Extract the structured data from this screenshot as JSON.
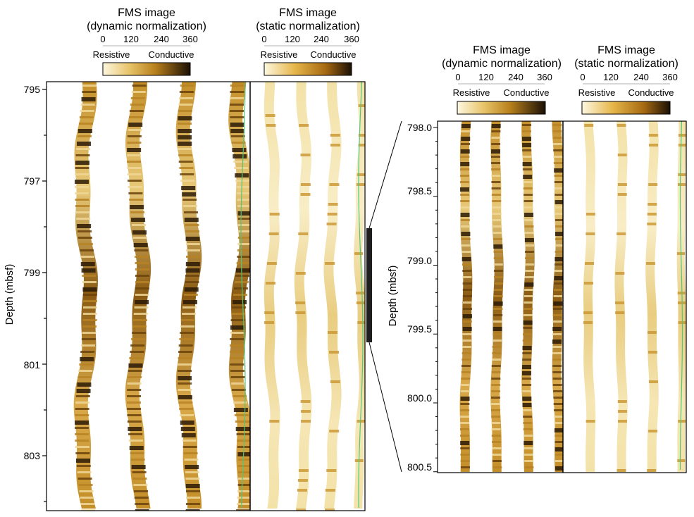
{
  "left_figure": {
    "y_axis_label": "Depth (mbsf)",
    "depth_ticks": [
      "795",
      "797",
      "799",
      "801",
      "803"
    ],
    "panels": [
      {
        "title_line1": "FMS image",
        "title_line2": "(dynamic normalization)",
        "scale_ticks": [
          "0",
          "120",
          "240",
          "360"
        ],
        "resistive_label": "Resistive",
        "conductive_label": "Conductive",
        "normalization": "dynamic"
      },
      {
        "title_line1": "FMS image",
        "title_line2": "(static normalization)",
        "scale_ticks": [
          "0",
          "120",
          "240",
          "360"
        ],
        "resistive_label": "Resistive",
        "conductive_label": "Conductive",
        "normalization": "static"
      }
    ]
  },
  "right_figure": {
    "y_axis_label": "Depth (mbsf)",
    "depth_ticks": [
      "798.0",
      "798.5",
      "799.0",
      "799.5",
      "800.0",
      "800.5"
    ],
    "panels": [
      {
        "title_line1": "FMS image",
        "title_line2": "(dynamic normalization)",
        "scale_ticks": [
          "0",
          "120",
          "240",
          "360"
        ],
        "resistive_label": "Resistive",
        "conductive_label": "Conductive",
        "normalization": "dynamic"
      },
      {
        "title_line1": "FMS image",
        "title_line2": "(static normalization)",
        "scale_ticks": [
          "0",
          "120",
          "240",
          "360"
        ],
        "resistive_label": "Resistive",
        "conductive_label": "Conductive",
        "normalization": "static"
      }
    ]
  },
  "colors": {
    "resistive": "#fbf6d8",
    "mid": "#d9a22c",
    "conductive": "#2a1a05",
    "orientation_curve": "#4fc87a",
    "zoom_marker": "#1e1e1e"
  }
}
